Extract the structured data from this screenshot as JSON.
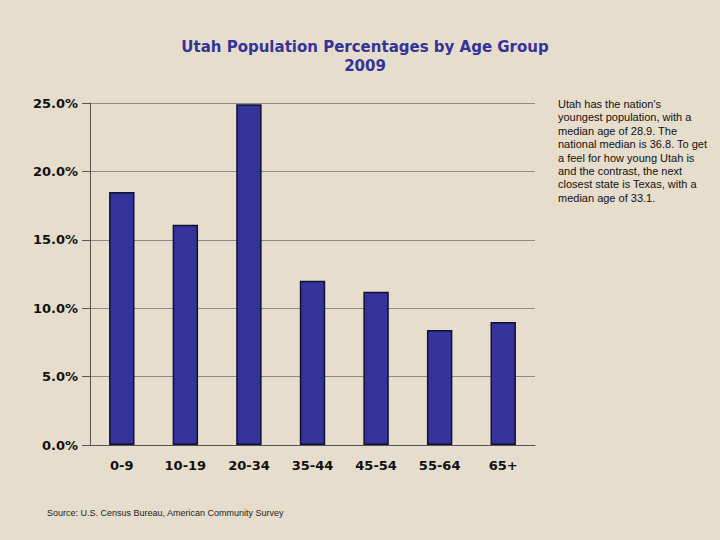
{
  "chart_data": {
    "type": "bar",
    "title": "Utah Population Percentages by Age Group",
    "subtitle": "2009",
    "categories": [
      "0-9",
      "10-19",
      "20-34",
      "35-44",
      "45-54",
      "55-64",
      "65+"
    ],
    "values": [
      18.5,
      16.1,
      24.9,
      12.0,
      11.2,
      8.4,
      9.0
    ],
    "color": "#333399",
    "ylim": [
      0,
      25
    ],
    "yticks": [
      {
        "value": 0,
        "label": "0.0%"
      },
      {
        "value": 5,
        "label": "5.0%"
      },
      {
        "value": 10,
        "label": "10.0%"
      },
      {
        "value": 15,
        "label": "15.0%"
      },
      {
        "value": 20,
        "label": "20.0%"
      },
      {
        "value": 25,
        "label": "25.0%"
      }
    ],
    "grid": true,
    "annotations": [
      "Utah has the nation's youngest population, with a median age of 28.9. The national median is 36.8. To get a feel for how young Utah is and the contrast, the next closest state is Texas, with a median age of 33.1."
    ],
    "source": "Source: U.S. Census Bureau, American Community Survey"
  }
}
